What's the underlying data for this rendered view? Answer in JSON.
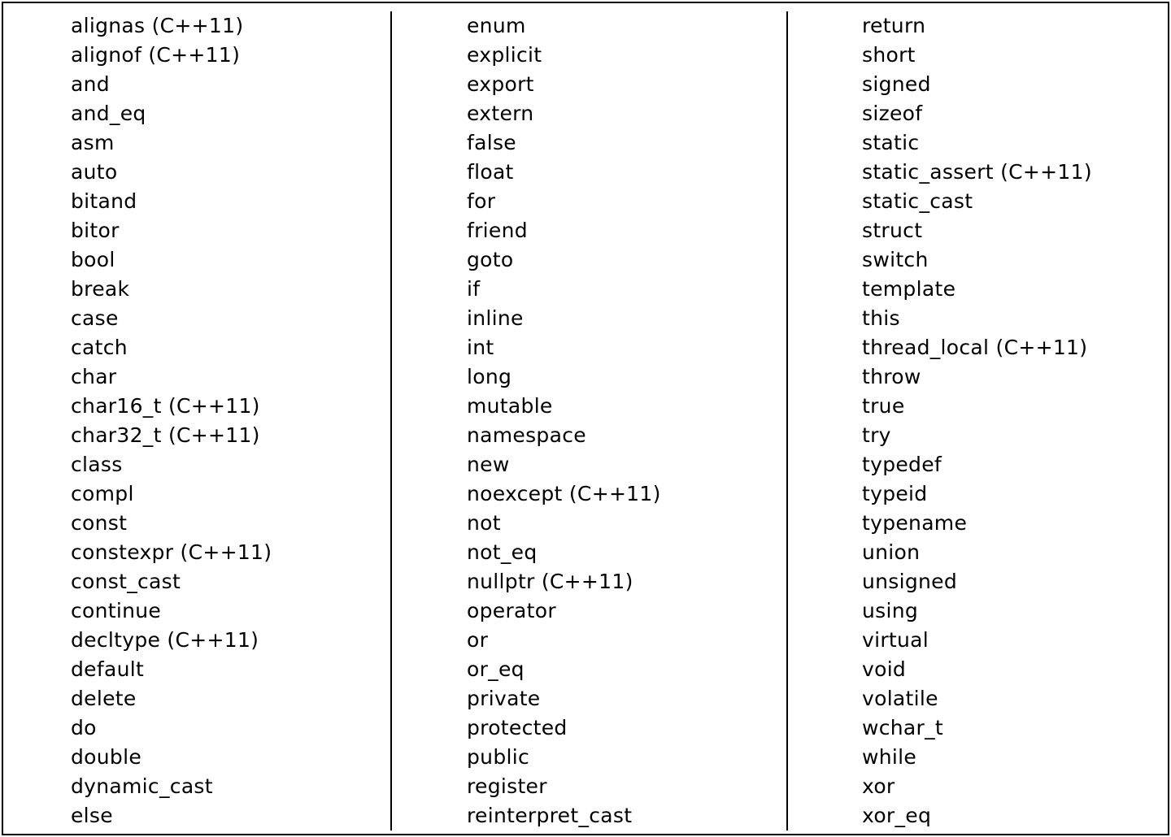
{
  "columns": [
    {
      "keywords": [
        "alignas (C++11)",
        "alignof (C++11)",
        "and",
        "and_eq",
        "asm",
        "auto",
        "bitand",
        "bitor",
        "bool",
        "break",
        "case",
        "catch",
        "char",
        "char16_t (C++11)",
        "char32_t (C++11)",
        "class",
        "compl",
        "const",
        "constexpr (C++11)",
        "const_cast",
        "continue",
        "decltype (C++11)",
        "default",
        "delete",
        "do",
        "double",
        "dynamic_cast",
        "else"
      ]
    },
    {
      "keywords": [
        "enum",
        "explicit",
        "export",
        "extern",
        "false",
        "float",
        "for",
        "friend",
        "goto",
        "if",
        "inline",
        "int",
        "long",
        "mutable",
        "namespace",
        "new",
        "noexcept (C++11)",
        "not",
        "not_eq",
        "nullptr (C++11)",
        "operator",
        "or",
        "or_eq",
        "private",
        "protected",
        "public",
        "register",
        "reinterpret_cast"
      ]
    },
    {
      "keywords": [
        "return",
        "short",
        "signed",
        "sizeof",
        "static",
        "static_assert (C++11)",
        "static_cast",
        "struct",
        "switch",
        "template",
        "this",
        "thread_local (C++11)",
        "throw",
        "true",
        "try",
        "typedef",
        "typeid",
        "typename",
        "union",
        "unsigned",
        "using",
        "virtual",
        "void",
        "volatile",
        "wchar_t",
        "while",
        "xor",
        "xor_eq"
      ]
    }
  ]
}
